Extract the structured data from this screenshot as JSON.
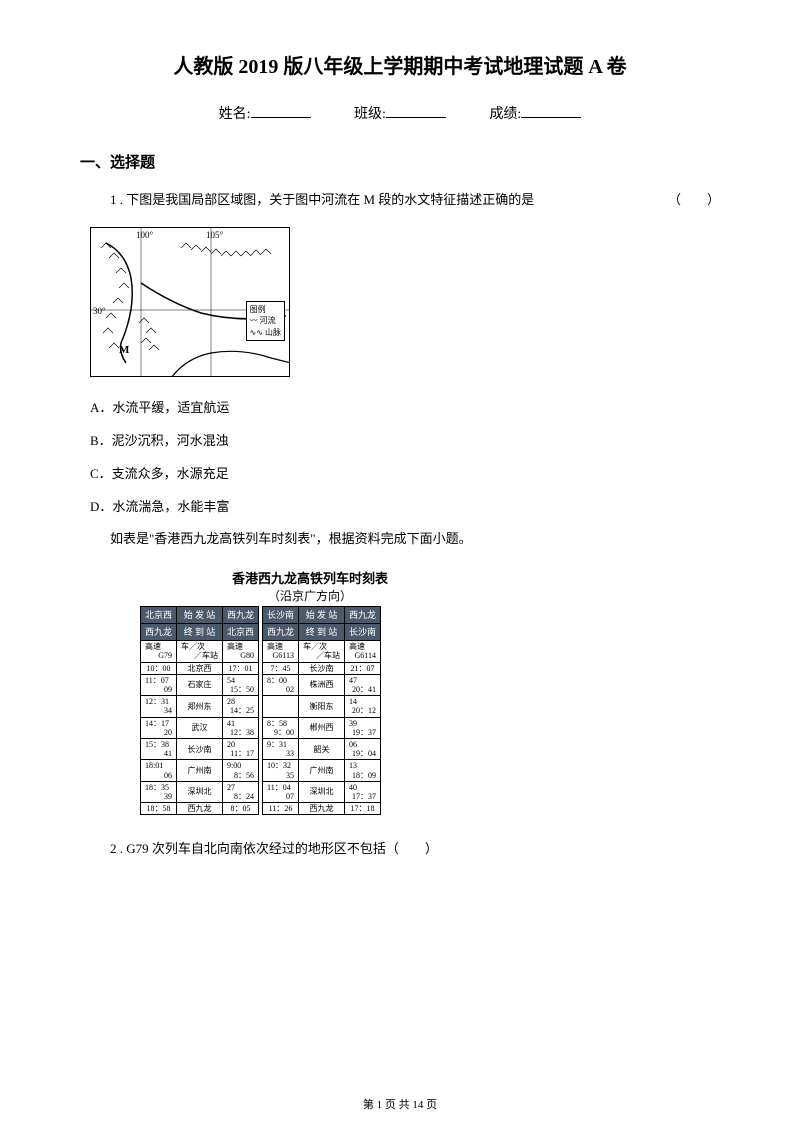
{
  "title": "人教版 2019 版八年级上学期期中考试地理试题 A 卷",
  "info": {
    "name_label": "姓名:",
    "class_label": "班级:",
    "score_label": "成绩:"
  },
  "section1_title": "一、选择题",
  "q1": {
    "number": "1 . ",
    "text": "下图是我国局部区域图，关于图中河流在 M 段的水文特征描述正确的是",
    "paren": "（　　）"
  },
  "map": {
    "lon100": "100°",
    "lon105": "105°",
    "lat30": "30°",
    "m_label": "M",
    "legend_title": "图例",
    "legend_river": "河流",
    "legend_mountain": "山脉"
  },
  "options_q1": {
    "a": "A．水流平缓，适宜航运",
    "b": "B．泥沙沉积，河水混浊",
    "c": "C．支流众多，水源充足",
    "d": "D．水流湍急，水能丰富"
  },
  "intro2": "如表是\"香港西九龙高铁列车时刻表\"，根据资料完成下面小题。",
  "timetable": {
    "title": "香港西九龙高铁列车时刻表",
    "subtitle": "（沿京广方向）",
    "left": {
      "header_top": [
        "北京西",
        "始 发 站",
        "西九龙"
      ],
      "header_bot": [
        "西九龙",
        "终 到 站",
        "北京西"
      ],
      "train_row": [
        "高速\nG79",
        "车／次\n／车站",
        "高速\nG80"
      ],
      "rows": [
        [
          "10：00",
          "北京西",
          "17：01"
        ],
        [
          "11：07\n09",
          "石家庄",
          "54\n15：50"
        ],
        [
          "12：31\n34",
          "郑州东",
          "28\n14：25"
        ],
        [
          "14：17\n20",
          "武汉",
          "41\n12：38"
        ],
        [
          "15：38\n41",
          "长沙南",
          "20\n11：17"
        ],
        [
          "18:01\n06",
          "广州南",
          "9:00\n8：56"
        ],
        [
          "18：35\n39",
          "深圳北",
          "27\n8：24"
        ],
        [
          "18：58",
          "西九龙",
          "8：05"
        ]
      ]
    },
    "right": {
      "header_top": [
        "长沙南",
        "始 发 站",
        "西九龙"
      ],
      "header_bot": [
        "西九龙",
        "终 到 站",
        "长沙南"
      ],
      "train_row": [
        "高速\nG6113",
        "车／次\n／车站",
        "高速\nG6114"
      ],
      "rows": [
        [
          "7：45",
          "长沙南",
          "21：07"
        ],
        [
          "8：00\n02",
          "株洲西",
          "47\n20：41"
        ],
        [
          "",
          "衡阳东",
          "14\n20：12"
        ],
        [
          "8：58\n9：00",
          "郴州西",
          "39\n19：37"
        ],
        [
          "9：31\n33",
          "韶关",
          "06\n19：04"
        ],
        [
          "10：32\n35",
          "广州南",
          "13\n18：09"
        ],
        [
          "11：04\n07",
          "深圳北",
          "40\n17：37"
        ],
        [
          "11：26",
          "西九龙",
          "17：18"
        ]
      ]
    }
  },
  "q2": {
    "number": "2 . ",
    "text": "G79 次列车自北向南依次经过的地形区不包括（　　）"
  },
  "footer": "第 1 页 共 14 页"
}
